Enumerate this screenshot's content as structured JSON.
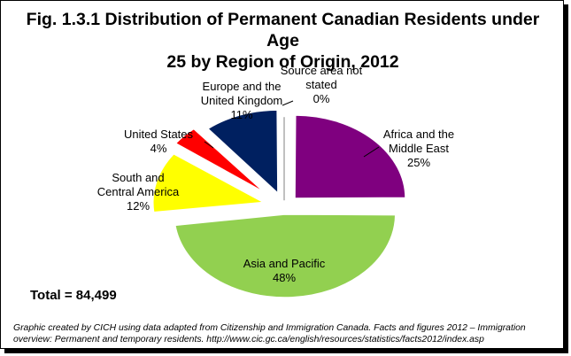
{
  "chart_data": {
    "type": "pie",
    "title_lines": [
      "Fig. 1.3.1 Distribution of Permanent Canadian Residents under Age",
      "25 by Region of Origin, 2012"
    ],
    "slices": [
      {
        "label_lines": [
          "Africa and the",
          "Middle East"
        ],
        "value": 25,
        "value_label": "25%",
        "color": "#7f007f"
      },
      {
        "label_lines": [
          "Asia and Pacific"
        ],
        "value": 48,
        "value_label": "48%",
        "color": "#92d050"
      },
      {
        "label_lines": [
          "South and",
          "Central America"
        ],
        "value": 12,
        "value_label": "12%",
        "color": "#ffff00"
      },
      {
        "label_lines": [
          "United States"
        ],
        "value": 4,
        "value_label": "4%",
        "color": "#ff0000"
      },
      {
        "label_lines": [
          "Europe and the",
          "United Kingdom"
        ],
        "value": 11,
        "value_label": "11%",
        "color": "#002060"
      },
      {
        "label_lines": [
          "Source area not",
          "stated"
        ],
        "value": 0,
        "value_label": "0%",
        "color": "#c0c0c0"
      }
    ],
    "exploded": true,
    "start_angle": "12 o'clock, clockwise",
    "legend": "none (labels beside slices)"
  },
  "total_label": "Total = 84,499",
  "source_lines": [
    "Graphic created by CICH using data adapted from Citizenship and Immigration Canada. Facts and figures 2012 – Immigration",
    "overview: Permanent and temporary residents. http://www.cic.gc.ca/english/resources/statistics/facts2012/index.asp"
  ]
}
